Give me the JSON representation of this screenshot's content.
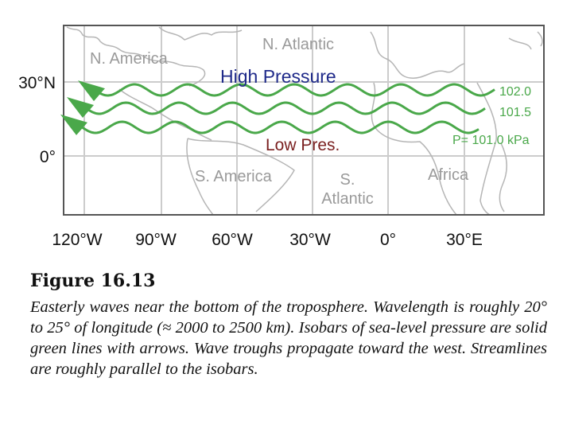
{
  "axes": {
    "y_ticks": [
      "30°N",
      "0°"
    ],
    "x_ticks": [
      "120°W",
      "90°W",
      "60°W",
      "30°W",
      "0°",
      "30°E"
    ]
  },
  "regions": {
    "north_america": "N. America",
    "north_atlantic": "N. Atlantic",
    "south_america": "S. America",
    "south_atlantic_line1": "S.",
    "south_atlantic_line2": "Atlantic",
    "africa": "Africa"
  },
  "labels": {
    "high": "High Pressure",
    "low": "Low Pres."
  },
  "isobars": [
    {
      "label": "102.0"
    },
    {
      "label": "101.5"
    },
    {
      "label": "P= 101.0 kPa"
    }
  ],
  "colors": {
    "isobar": "#4aa84a",
    "high": "#1f2a8a",
    "low": "#7a1f1f",
    "grid": "#cccccc",
    "coast": "#b5b5b5",
    "region_text": "#9a9a9a"
  },
  "caption": {
    "title": "Figure 16.13",
    "text": "Easterly waves near the bottom of the troposphere. Wavelength is roughly 20° to 25° of longitude (≈ 2000 to 2500 km). Isobars of sea-level pressure are solid green lines with arrows. Wave troughs propagate toward the west. Streamlines are roughly parallel to the isobars."
  }
}
